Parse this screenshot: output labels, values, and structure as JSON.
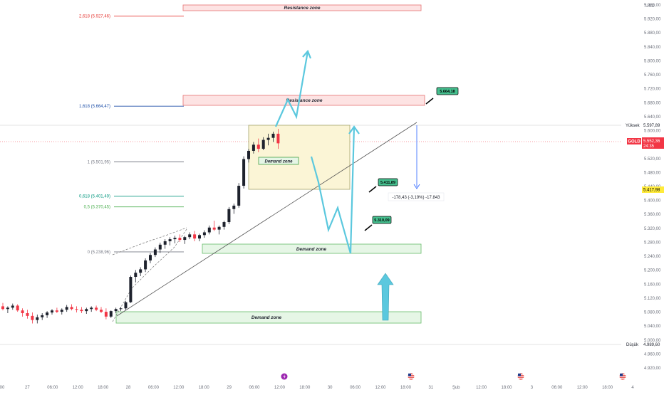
{
  "chart_data": {
    "type": "candlestick",
    "symbol": "GOLD",
    "currency": "USD",
    "ylim": [
      4900,
      5960
    ],
    "price_ticks": [
      "5.960,00",
      "5.920,00",
      "5.880,00",
      "5.840,00",
      "5.800,00",
      "5.760,00",
      "5.720,00",
      "5.680,00",
      "5.640,00",
      "5.600,00",
      "5.560,00",
      "5.520,00",
      "5.480,00",
      "5.440,00",
      "5.400,00",
      "5.360,00",
      "5.320,00",
      "5.280,00",
      "5.240,00",
      "5.200,00",
      "5.160,00",
      "5.120,00",
      "5.080,00",
      "5.040,00",
      "5.000,00",
      "4.960,00",
      "4.920,00"
    ],
    "time_labels": [
      "00",
      "27",
      "06:00",
      "12:00",
      "18:00",
      "28",
      "06:00",
      "12:00",
      "18:00",
      "29",
      "06:00",
      "12:00",
      "18:00",
      "30",
      "06:00",
      "12:00",
      "18:00",
      "31",
      "Şub",
      "12:00",
      "18:00",
      "3",
      "06:00",
      "12:00",
      "18:00",
      "4"
    ],
    "fib_levels": [
      {
        "label": "2,618 (5.927,46)",
        "price": 5927.46,
        "color": "#e53935"
      },
      {
        "label": "1,618 (5.664,47)",
        "price": 5664.47,
        "color": "#1e4fa8"
      },
      {
        "label": "1 (5.501,95)",
        "price": 5501.95,
        "color": "#787b86"
      },
      {
        "label": "0,618 (5.401,49)",
        "price": 5401.49,
        "color": "#089981"
      },
      {
        "label": "0,5 (5.370,45)",
        "price": 5370.45,
        "color": "#4caf50"
      },
      {
        "label": "0 (5.238,96)",
        "price": 5238.96,
        "color": "#787b86"
      }
    ],
    "zones": [
      {
        "label": "Resistance zone",
        "kind": "resistance",
        "top": 5960,
        "bottom": 5940
      },
      {
        "label": "Resistance zone",
        "kind": "resistance",
        "top": 5670,
        "bottom": 5640
      },
      {
        "label": "Demand zone",
        "kind": "demand",
        "top": 5262,
        "bottom": 5238
      },
      {
        "label": "Demand zone",
        "kind": "demand",
        "top": 5072,
        "bottom": 5050
      }
    ],
    "yellow_box": {
      "top": 5584,
      "bottom": 5420
    },
    "small_zone_label": "Demand zone",
    "price_tags": [
      "5.664,18",
      "5.411,89",
      "5.310,09"
    ],
    "measure_text": "-178,43 (-3,19%) -17.843",
    "high_label": "Yüksek",
    "high_value": "5.597,89",
    "low_label": "Düşük",
    "low_value": "4.989,60",
    "current_value": "5.552,36",
    "current_time": "24:35",
    "marker_value": "5.417,98",
    "candles": [
      [
        5080,
        5090,
        5068,
        5072
      ],
      [
        5072,
        5080,
        5060,
        5076
      ],
      [
        5076,
        5088,
        5070,
        5082
      ],
      [
        5082,
        5086,
        5064,
        5068
      ],
      [
        5068,
        5074,
        5050,
        5060
      ],
      [
        5060,
        5070,
        5044,
        5052
      ],
      [
        5052,
        5062,
        5030,
        5040
      ],
      [
        5040,
        5056,
        5030,
        5048
      ],
      [
        5048,
        5060,
        5040,
        5054
      ],
      [
        5054,
        5066,
        5046,
        5062
      ],
      [
        5062,
        5072,
        5056,
        5068
      ],
      [
        5068,
        5076,
        5060,
        5064
      ],
      [
        5064,
        5074,
        5056,
        5070
      ],
      [
        5070,
        5084,
        5064,
        5078
      ],
      [
        5078,
        5086,
        5068,
        5072
      ],
      [
        5072,
        5080,
        5062,
        5070
      ],
      [
        5070,
        5078,
        5060,
        5066
      ],
      [
        5066,
        5076,
        5058,
        5072
      ],
      [
        5072,
        5080,
        5064,
        5076
      ],
      [
        5076,
        5082,
        5066,
        5070
      ],
      [
        5070,
        5078,
        5060,
        5064
      ],
      [
        5064,
        5074,
        5042,
        5050
      ],
      [
        5050,
        5068,
        5046,
        5066
      ],
      [
        5066,
        5076,
        5060,
        5072
      ],
      [
        5072,
        5078,
        5066,
        5074
      ],
      [
        5074,
        5096,
        5070,
        5092
      ],
      [
        5092,
        5170,
        5090,
        5166
      ],
      [
        5166,
        5186,
        5150,
        5178
      ],
      [
        5178,
        5194,
        5168,
        5188
      ],
      [
        5188,
        5220,
        5180,
        5214
      ],
      [
        5214,
        5236,
        5206,
        5230
      ],
      [
        5230,
        5252,
        5224,
        5246
      ],
      [
        5246,
        5266,
        5236,
        5260
      ],
      [
        5260,
        5276,
        5248,
        5270
      ],
      [
        5270,
        5282,
        5258,
        5276
      ],
      [
        5276,
        5286,
        5264,
        5280
      ],
      [
        5280,
        5290,
        5268,
        5274
      ],
      [
        5274,
        5286,
        5262,
        5282
      ],
      [
        5282,
        5296,
        5276,
        5290
      ],
      [
        5290,
        5300,
        5270,
        5278
      ],
      [
        5278,
        5292,
        5270,
        5288
      ],
      [
        5288,
        5302,
        5280,
        5296
      ],
      [
        5296,
        5316,
        5290,
        5310
      ],
      [
        5310,
        5330,
        5300,
        5304
      ],
      [
        5304,
        5316,
        5290,
        5312
      ],
      [
        5312,
        5330,
        5304,
        5326
      ],
      [
        5326,
        5370,
        5320,
        5364
      ],
      [
        5364,
        5380,
        5350,
        5374
      ],
      [
        5374,
        5440,
        5368,
        5432
      ],
      [
        5432,
        5518,
        5424,
        5510
      ],
      [
        5510,
        5540,
        5500,
        5534
      ],
      [
        5534,
        5560,
        5526,
        5552
      ],
      [
        5552,
        5570,
        5530,
        5540
      ],
      [
        5540,
        5574,
        5536,
        5566
      ],
      [
        5566,
        5584,
        5550,
        5572
      ],
      [
        5572,
        5590,
        5560,
        5584
      ],
      [
        5584,
        5598,
        5540,
        5556
      ]
    ]
  }
}
